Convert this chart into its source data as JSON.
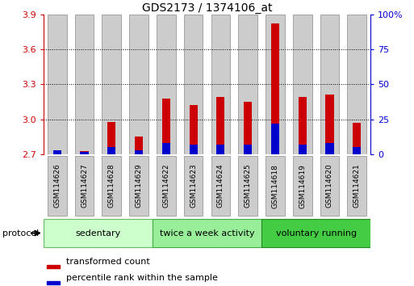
{
  "title": "GDS2173 / 1374106_at",
  "categories": [
    "GSM114626",
    "GSM114627",
    "GSM114628",
    "GSM114629",
    "GSM114622",
    "GSM114623",
    "GSM114624",
    "GSM114625",
    "GSM114618",
    "GSM114619",
    "GSM114620",
    "GSM114621"
  ],
  "red_values": [
    2.72,
    2.73,
    2.98,
    2.85,
    3.18,
    3.12,
    3.19,
    3.15,
    3.82,
    3.19,
    3.21,
    2.97
  ],
  "percentile_vals": [
    3,
    2,
    5,
    3,
    8,
    7,
    7,
    7,
    22,
    7,
    8,
    5
  ],
  "ylim_left": [
    2.7,
    3.9
  ],
  "ylim_right": [
    0,
    100
  ],
  "yticks_left": [
    2.7,
    3.0,
    3.3,
    3.6,
    3.9
  ],
  "yticks_right": [
    0,
    25,
    50,
    75,
    100
  ],
  "ytick_labels_right": [
    "0",
    "25",
    "50",
    "75",
    "100%"
  ],
  "bar_baseline": 2.7,
  "groups": [
    {
      "label": "sedentary",
      "indices": [
        0,
        1,
        2,
        3
      ],
      "color": "#ccffcc",
      "edge": "#66bb66"
    },
    {
      "label": "twice a week activity",
      "indices": [
        4,
        5,
        6,
        7
      ],
      "color": "#99ee99",
      "edge": "#44aa44"
    },
    {
      "label": "voluntary running",
      "indices": [
        8,
        9,
        10,
        11
      ],
      "color": "#44cc44",
      "edge": "#228822"
    }
  ],
  "protocol_label": "protocol",
  "legend_red": "transformed count",
  "legend_blue": "percentile rank within the sample",
  "red_color": "#cc0000",
  "blue_color": "#0000cc",
  "left_axis_color": "#cc0000",
  "right_axis_color": "#0000cc",
  "bg_color": "#ffffff",
  "bar_bg_color": "#cccccc",
  "bar_bg_edge": "#999999"
}
